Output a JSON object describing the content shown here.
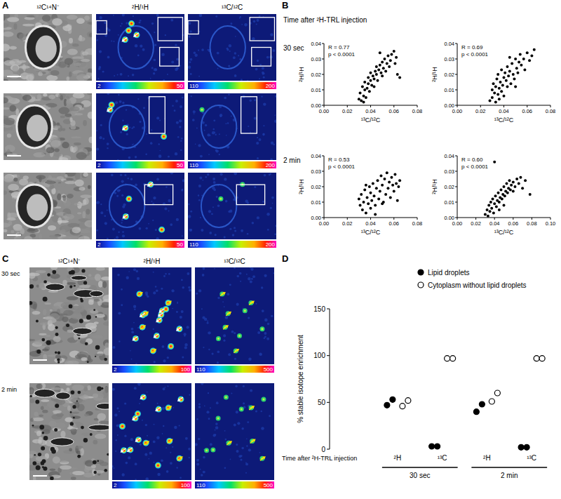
{
  "panel_a": {
    "label": "A",
    "columns": [
      {
        "title": "¹²C¹⁴N⁻"
      },
      {
        "title": "²H/¹H",
        "colorbar": {
          "range": [
            2,
            50
          ]
        }
      },
      {
        "title": "¹³C/¹²C",
        "colorbar": {
          "range": [
            110,
            200
          ]
        }
      }
    ]
  },
  "panel_b": {
    "label": "B",
    "heading": "Time after ²H-TRL injection",
    "rows": [
      "30 sec",
      "2 min"
    ]
  },
  "panel_c": {
    "label": "C",
    "rows": [
      "30 sec",
      "2 min"
    ],
    "columns": [
      {
        "title": "¹²C¹⁴N⁻"
      },
      {
        "title": "²H/¹H",
        "colorbar": {
          "range": [
            2,
            100
          ]
        }
      },
      {
        "title": "¹³C/¹²C",
        "colorbar": {
          "range": [
            110,
            500
          ]
        }
      }
    ]
  },
  "panel_d": {
    "label": "D"
  },
  "chart_data": [
    {
      "type": "scatter",
      "x_label": "¹³C/¹²C",
      "y_label": "²H/¹H",
      "annotations": [
        "R = 0.77",
        "p < 0.0001"
      ],
      "xlim": [
        0,
        0.08
      ],
      "xticks": [
        {
          "value": 0,
          "label": "0.00"
        },
        {
          "value": 0.02,
          "label": "0.02"
        },
        {
          "value": 0.04,
          "label": "0.04"
        },
        {
          "value": 0.06,
          "label": "0.06"
        },
        {
          "value": 0.08,
          "label": "0.08"
        }
      ],
      "ylim": [
        0,
        0.04
      ],
      "yticks": [
        {
          "value": 0,
          "label": "0.00"
        },
        {
          "value": 0.01,
          "label": "0.01"
        },
        {
          "value": 0.02,
          "label": "0.02"
        },
        {
          "value": 0.03,
          "label": "0.03"
        },
        {
          "value": 0.04,
          "label": "0.04"
        }
      ],
      "series": [
        {
          "color": "#000000",
          "marker": "circle",
          "x": [
            0.03,
            0.031,
            0.032,
            0.033,
            0.034,
            0.035,
            0.035,
            0.036,
            0.037,
            0.038,
            0.038,
            0.039,
            0.04,
            0.04,
            0.041,
            0.042,
            0.043,
            0.044,
            0.045,
            0.045,
            0.046,
            0.047,
            0.048,
            0.049,
            0.05,
            0.05,
            0.051,
            0.052,
            0.053,
            0.054,
            0.055,
            0.056,
            0.057,
            0.058,
            0.06,
            0.061,
            0.062,
            0.063,
            0.065,
            0.034,
            0.043,
            0.048
          ],
          "values": [
            0.004,
            0.008,
            0.003,
            0.012,
            0.006,
            0.01,
            0.015,
            0.005,
            0.011,
            0.014,
            0.018,
            0.009,
            0.016,
            0.021,
            0.013,
            0.019,
            0.017,
            0.022,
            0.02,
            0.025,
            0.016,
            0.023,
            0.026,
            0.021,
            0.028,
            0.019,
            0.024,
            0.03,
            0.022,
            0.027,
            0.032,
            0.025,
            0.029,
            0.033,
            0.035,
            0.027,
            0.031,
            0.02,
            0.018,
            0.002,
            0.012,
            0.034
          ]
        }
      ]
    },
    {
      "type": "scatter",
      "x_label": "¹³C/¹²C",
      "y_label": "²H/¹H",
      "annotations": [
        "R = 0.69",
        "p < 0.0001"
      ],
      "xlim": [
        0,
        0.08
      ],
      "xticks": [
        {
          "value": 0,
          "label": "0.00"
        },
        {
          "value": 0.02,
          "label": "0.02"
        },
        {
          "value": 0.04,
          "label": "0.04"
        },
        {
          "value": 0.06,
          "label": "0.06"
        },
        {
          "value": 0.08,
          "label": "0.08"
        }
      ],
      "ylim": [
        0,
        0.04
      ],
      "yticks": [
        {
          "value": 0,
          "label": "0.00"
        },
        {
          "value": 0.01,
          "label": "0.01"
        },
        {
          "value": 0.02,
          "label": "0.02"
        },
        {
          "value": 0.03,
          "label": "0.03"
        },
        {
          "value": 0.04,
          "label": "0.04"
        }
      ],
      "series": [
        {
          "color": "#000000",
          "marker": "circle",
          "x": [
            0.028,
            0.03,
            0.03,
            0.031,
            0.032,
            0.033,
            0.033,
            0.034,
            0.035,
            0.035,
            0.036,
            0.037,
            0.038,
            0.038,
            0.039,
            0.04,
            0.04,
            0.041,
            0.042,
            0.043,
            0.043,
            0.044,
            0.045,
            0.046,
            0.047,
            0.048,
            0.049,
            0.05,
            0.051,
            0.052,
            0.053,
            0.054,
            0.055,
            0.057,
            0.058,
            0.06,
            0.062,
            0.064,
            0.066,
            0.036,
            0.045,
            0.05
          ],
          "values": [
            0.003,
            0.01,
            0.005,
            0.014,
            0.008,
            0.002,
            0.012,
            0.017,
            0.007,
            0.02,
            0.011,
            0.015,
            0.009,
            0.023,
            0.013,
            0.018,
            0.006,
            0.021,
            0.016,
            0.012,
            0.025,
            0.019,
            0.022,
            0.014,
            0.027,
            0.02,
            0.017,
            0.03,
            0.024,
            0.021,
            0.028,
            0.033,
            0.026,
            0.03,
            0.023,
            0.034,
            0.029,
            0.032,
            0.036,
            0.004,
            0.031,
            0.012
          ]
        }
      ]
    },
    {
      "type": "scatter",
      "x_label": "¹³C/¹²C",
      "y_label": "²H/¹H",
      "annotations": [
        "R = 0.53",
        "p < 0.0001"
      ],
      "xlim": [
        0,
        0.08
      ],
      "xticks": [
        {
          "value": 0,
          "label": "0.00"
        },
        {
          "value": 0.02,
          "label": "0.02"
        },
        {
          "value": 0.04,
          "label": "0.04"
        },
        {
          "value": 0.06,
          "label": "0.06"
        },
        {
          "value": 0.08,
          "label": "0.08"
        }
      ],
      "ylim": [
        0,
        0.04
      ],
      "yticks": [
        {
          "value": 0,
          "label": "0.00"
        },
        {
          "value": 0.01,
          "label": "0.01"
        },
        {
          "value": 0.02,
          "label": "0.02"
        },
        {
          "value": 0.03,
          "label": "0.03"
        },
        {
          "value": 0.04,
          "label": "0.04"
        }
      ],
      "series": [
        {
          "color": "#000000",
          "marker": "circle",
          "x": [
            0.03,
            0.031,
            0.032,
            0.033,
            0.034,
            0.035,
            0.036,
            0.037,
            0.038,
            0.039,
            0.04,
            0.04,
            0.041,
            0.042,
            0.043,
            0.044,
            0.045,
            0.046,
            0.047,
            0.048,
            0.049,
            0.05,
            0.051,
            0.052,
            0.053,
            0.054,
            0.055,
            0.056,
            0.057,
            0.058,
            0.059,
            0.06,
            0.061,
            0.062,
            0.063,
            0.064,
            0.065,
            0.044,
            0.05,
            0.036
          ],
          "values": [
            0.012,
            0.008,
            0.015,
            0.005,
            0.01,
            0.018,
            0.003,
            0.013,
            0.009,
            0.02,
            0.016,
            0.006,
            0.011,
            0.022,
            0.014,
            0.008,
            0.019,
            0.024,
            0.012,
            0.017,
            0.027,
            0.021,
            0.01,
            0.025,
            0.015,
            0.029,
            0.019,
            0.023,
            0.013,
            0.026,
            0.021,
            0.017,
            0.028,
            0.022,
            0.011,
            0.02,
            0.024,
            0.002,
            0.009,
            0.021
          ]
        }
      ]
    },
    {
      "type": "scatter",
      "x_label": "¹³C/¹²C",
      "y_label": "²H/¹H",
      "annotations": [
        "R = 0.60",
        "p < 0.0001"
      ],
      "xlim": [
        0,
        0.1
      ],
      "xticks": [
        {
          "value": 0,
          "label": "0.00"
        },
        {
          "value": 0.02,
          "label": "0.02"
        },
        {
          "value": 0.04,
          "label": "0.04"
        },
        {
          "value": 0.06,
          "label": "0.06"
        },
        {
          "value": 0.08,
          "label": "0.08"
        },
        {
          "value": 0.1,
          "label": "0.10"
        }
      ],
      "ylim": [
        0,
        0.04
      ],
      "yticks": [
        {
          "value": 0,
          "label": "0.00"
        },
        {
          "value": 0.01,
          "label": "0.01"
        },
        {
          "value": 0.02,
          "label": "0.02"
        },
        {
          "value": 0.03,
          "label": "0.03"
        },
        {
          "value": 0.04,
          "label": "0.04"
        }
      ],
      "series": [
        {
          "color": "#000000",
          "marker": "circle",
          "x": [
            0.03,
            0.032,
            0.033,
            0.034,
            0.035,
            0.036,
            0.037,
            0.038,
            0.039,
            0.04,
            0.041,
            0.042,
            0.043,
            0.044,
            0.045,
            0.046,
            0.047,
            0.048,
            0.049,
            0.05,
            0.051,
            0.052,
            0.053,
            0.054,
            0.055,
            0.056,
            0.057,
            0.058,
            0.06,
            0.062,
            0.064,
            0.066,
            0.068,
            0.07,
            0.073,
            0.078,
            0.04,
            0.045,
            0.05,
            0.06
          ],
          "values": [
            0.002,
            0.005,
            0.001,
            0.008,
            0.004,
            0.01,
            0.006,
            0.012,
            0.003,
            0.009,
            0.014,
            0.007,
            0.011,
            0.016,
            0.01,
            0.013,
            0.018,
            0.012,
            0.015,
            0.02,
            0.014,
            0.017,
            0.022,
            0.016,
            0.019,
            0.024,
            0.018,
            0.021,
            0.023,
            0.02,
            0.025,
            0.022,
            0.026,
            0.019,
            0.024,
            0.015,
            0.036,
            0.005,
            0.008,
            0.017
          ]
        }
      ]
    },
    {
      "type": "dot",
      "x_label": "Time after ²H-TRL injection",
      "y_label": "% stable isotope enrichment",
      "ylim": [
        0,
        150
      ],
      "yticks": [
        0,
        50,
        100,
        150
      ],
      "categories": [
        "²H",
        "¹³C",
        "²H",
        "¹³C"
      ],
      "groups": [
        {
          "label": "30 sec",
          "size": 2
        },
        {
          "label": "2 min",
          "size": 2
        }
      ],
      "legend": "top-right",
      "series": [
        {
          "name": "Lipid droplets",
          "marker": "filled",
          "color": "#000000",
          "values": [
            [
              47,
              53
            ],
            [
              3,
              3
            ],
            [
              40,
              48
            ],
            [
              2,
              2
            ]
          ]
        },
        {
          "name": "Cytoplasm without lipid droplets",
          "marker": "open",
          "color": "#000000",
          "values": [
            [
              46,
              52
            ],
            [
              97,
              97
            ],
            [
              51,
              60
            ],
            [
              97,
              97
            ]
          ]
        }
      ]
    }
  ]
}
